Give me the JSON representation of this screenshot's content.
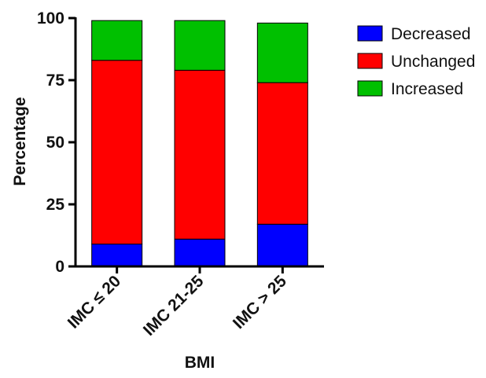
{
  "chart_data": {
    "type": "bar",
    "stacked": true,
    "categories": [
      "IMC ≤ 20",
      "IMC 21-25",
      "IMC > 25"
    ],
    "series": [
      {
        "name": "Decreased",
        "color": "#0000ff",
        "values": [
          9,
          11,
          17
        ]
      },
      {
        "name": "Unchanged",
        "color": "#ff0000",
        "values": [
          74,
          68,
          57
        ]
      },
      {
        "name": "Increased",
        "color": "#00c000",
        "values": [
          16,
          20,
          24
        ]
      }
    ],
    "title": "",
    "xlabel": "BMI",
    "ylabel": "Percentage",
    "ylim": [
      0,
      100
    ],
    "yticks": [
      0,
      25,
      50,
      75,
      100
    ],
    "legend_position": "right",
    "grid": false
  }
}
